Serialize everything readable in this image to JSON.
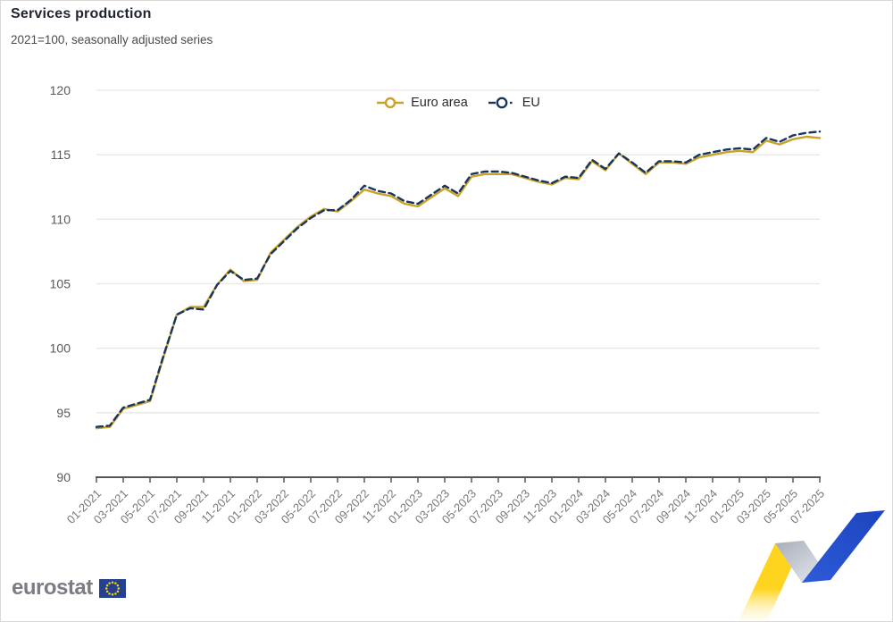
{
  "header": {
    "title": "Services production",
    "subtitle": "2021=100, seasonally adjusted series"
  },
  "chart_data": {
    "type": "line",
    "x": [
      "01-2021",
      "02-2021",
      "03-2021",
      "04-2021",
      "05-2021",
      "06-2021",
      "07-2021",
      "08-2021",
      "09-2021",
      "10-2021",
      "11-2021",
      "12-2021",
      "01-2022",
      "02-2022",
      "03-2022",
      "04-2022",
      "05-2022",
      "06-2022",
      "07-2022",
      "08-2022",
      "09-2022",
      "10-2022",
      "11-2022",
      "12-2022",
      "01-2023",
      "02-2023",
      "03-2023",
      "04-2023",
      "05-2023",
      "06-2023",
      "07-2023",
      "08-2023",
      "09-2023",
      "10-2023",
      "11-2023",
      "12-2023",
      "01-2024",
      "02-2024",
      "03-2024",
      "04-2024",
      "05-2024",
      "06-2024",
      "07-2024",
      "08-2024",
      "09-2024",
      "10-2024",
      "11-2024",
      "12-2024",
      "01-2025",
      "02-2025",
      "03-2025",
      "04-2025",
      "05-2025",
      "06-2025",
      "07-2025"
    ],
    "label_every": 2,
    "ylim": [
      90,
      120
    ],
    "yticks": [
      90,
      95,
      100,
      105,
      110,
      115,
      120
    ],
    "grid": true,
    "legend_position": "top-center",
    "series": [
      {
        "name": "Euro area",
        "color": "#C9A227",
        "dash": "solid",
        "marker": "open-circle",
        "values": [
          93.8,
          93.9,
          95.3,
          95.6,
          95.9,
          99.3,
          102.6,
          103.2,
          103.2,
          104.9,
          106.1,
          105.2,
          105.3,
          107.4,
          108.4,
          109.4,
          110.2,
          110.8,
          110.6,
          111.4,
          112.3,
          112.0,
          111.8,
          111.2,
          111.0,
          111.7,
          112.4,
          111.8,
          113.3,
          113.5,
          113.5,
          113.5,
          113.2,
          112.9,
          112.7,
          113.2,
          113.1,
          114.5,
          113.8,
          115.1,
          114.3,
          113.5,
          114.4,
          114.4,
          114.3,
          114.8,
          115.0,
          115.2,
          115.3,
          115.2,
          116.1,
          115.8,
          116.2,
          116.4,
          116.3
        ]
      },
      {
        "name": "EU",
        "color": "#17355F",
        "dash": "dashed",
        "marker": "open-circle",
        "values": [
          93.9,
          94.0,
          95.4,
          95.7,
          96.0,
          99.4,
          102.6,
          103.1,
          103.0,
          104.9,
          106.0,
          105.3,
          105.4,
          107.3,
          108.3,
          109.3,
          110.1,
          110.7,
          110.7,
          111.5,
          112.6,
          112.2,
          112.0,
          111.4,
          111.2,
          111.9,
          112.6,
          112.0,
          113.5,
          113.7,
          113.7,
          113.6,
          113.3,
          113.0,
          112.8,
          113.3,
          113.2,
          114.6,
          113.9,
          115.1,
          114.4,
          113.6,
          114.5,
          114.5,
          114.4,
          115.0,
          115.2,
          115.4,
          115.5,
          115.4,
          116.3,
          116.0,
          116.5,
          116.7,
          116.8
        ]
      }
    ]
  },
  "footer": {
    "brand": "eurostat"
  },
  "colors": {
    "grid": "#E7E7E7",
    "axis": "#55565A",
    "tick_label": "#77787B",
    "y_label": "#58595B",
    "ribbon_yellow": "#FFD41F",
    "ribbon_gray": "#B7BCC6",
    "ribbon_blue": "#2451C9",
    "flag_blue": "#24408E",
    "flag_stars": "#F7D117"
  }
}
